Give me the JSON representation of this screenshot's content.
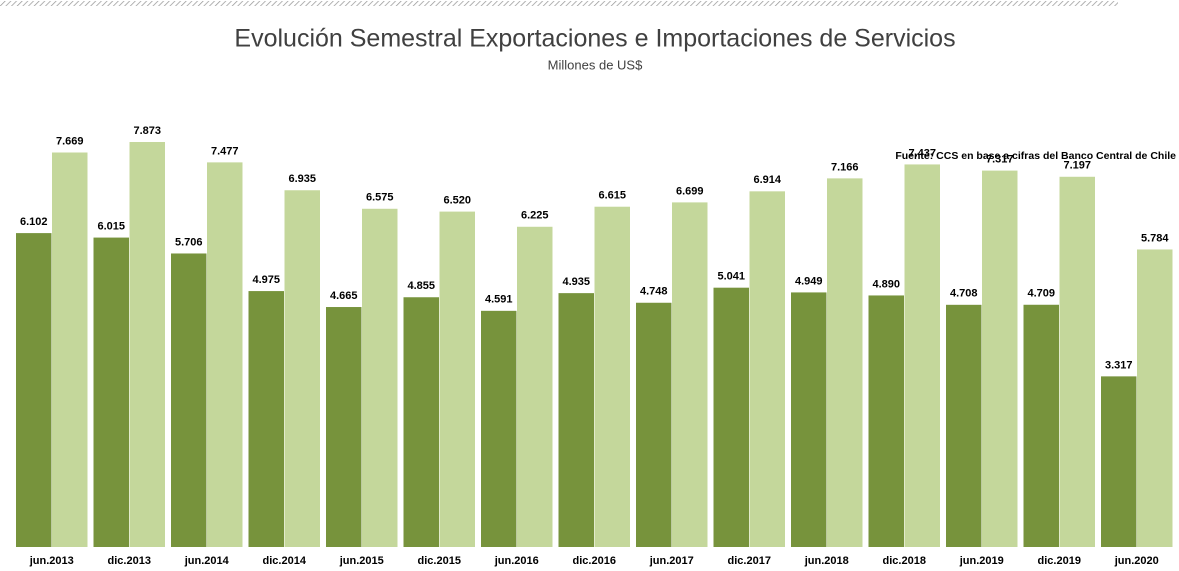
{
  "chart_data": {
    "type": "bar",
    "title": "Evolución Semestral Exportaciones e Importaciones de Servicios",
    "subtitle": "Millones de US$",
    "source": "Fuente: CCS en base a cifras del Banco Central de Chile",
    "categories": [
      "jun.2013",
      "dic.2013",
      "jun.2014",
      "dic.2014",
      "jun.2015",
      "dic.2015",
      "jun.2016",
      "dic.2016",
      "jun.2017",
      "dic.2017",
      "jun.2018",
      "dic.2018",
      "jun.2019",
      "dic.2019",
      "jun.2020"
    ],
    "series": [
      {
        "color": "#77933c",
        "values": [
          6102,
          6015,
          5706,
          4975,
          4665,
          4855,
          4591,
          4935,
          4748,
          5041,
          4949,
          4890,
          4708,
          4709,
          3317
        ],
        "value_labels": [
          "6.102",
          "6.015",
          "5.706",
          "4.975",
          "4.665",
          "4.855",
          "4.591",
          "4.935",
          "4.748",
          "5.041",
          "4.949",
          "4.890",
          "4.708",
          "4.709",
          "3.317"
        ]
      },
      {
        "color": "#c4d79b",
        "values": [
          7669,
          7873,
          7477,
          6935,
          6575,
          6520,
          6225,
          6615,
          6699,
          6914,
          7166,
          7437,
          7317,
          7197,
          5784
        ],
        "value_labels": [
          "7.669",
          "7.873",
          "7.477",
          "6.935",
          "6.575",
          "6.520",
          "6.225",
          "6.615",
          "6.699",
          "6.914",
          "7.166",
          "7.437",
          "7.317",
          "7.197",
          "5.784"
        ]
      }
    ]
  }
}
